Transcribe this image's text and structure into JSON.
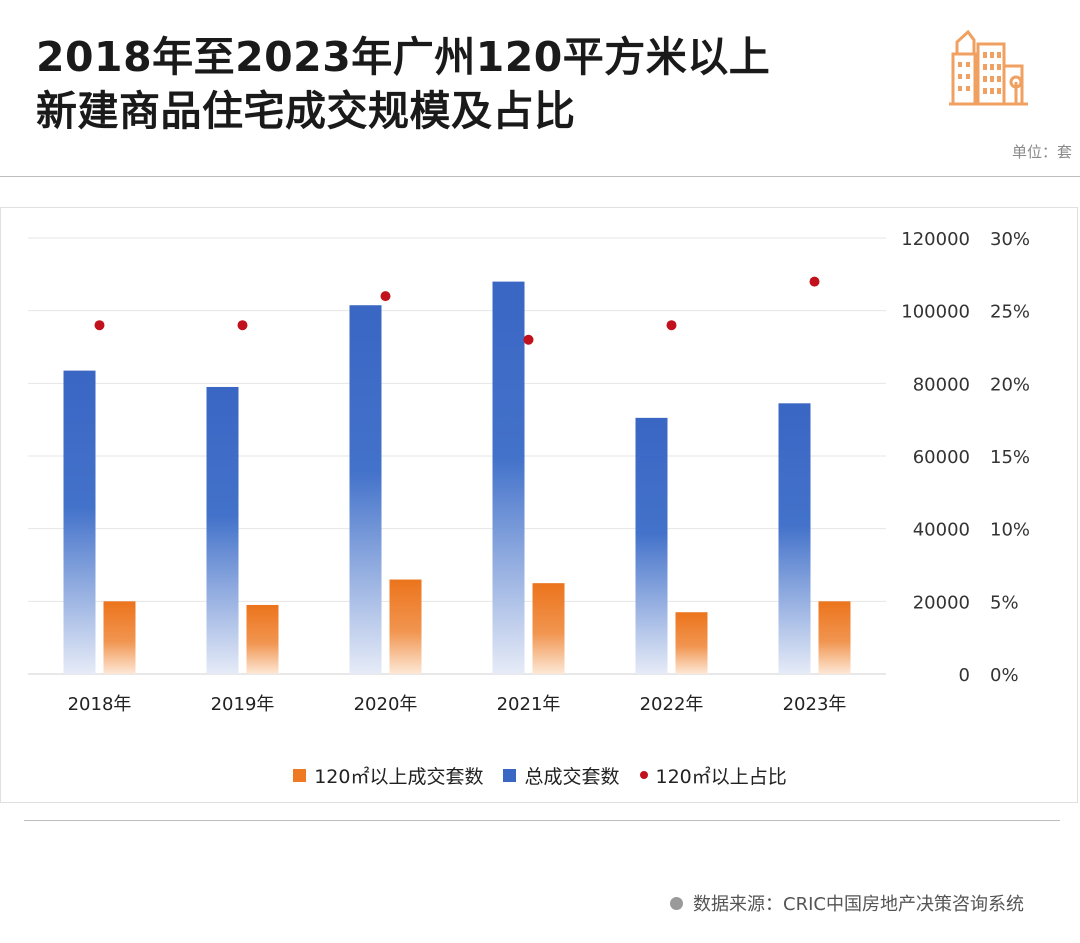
{
  "header": {
    "title_line1": "2018年至2023年广州120平方米以上",
    "title_line2": "新建商品住宅成交规模及占比",
    "unit_label": "单位：套",
    "logo_icon": "buildings-icon"
  },
  "footer": {
    "source_text": "数据来源：CRIC中国房地产决策咨询系统"
  },
  "colors": {
    "bar_total": "#3a66c4",
    "bar_large": "#ee7b24",
    "dot": "#c0111c",
    "logo": "#f0a060"
  },
  "chart_data": {
    "type": "bar",
    "categories": [
      "2018年",
      "2019年",
      "2020年",
      "2021年",
      "2022年",
      "2023年"
    ],
    "series": [
      {
        "name": "总成交套数",
        "type": "bar",
        "axis": "left",
        "values": [
          83500,
          79000,
          101500,
          108000,
          70500,
          74500
        ]
      },
      {
        "name": "120㎡以上成交套数",
        "type": "bar",
        "axis": "left",
        "values": [
          20000,
          19000,
          26000,
          25000,
          17000,
          20000
        ]
      },
      {
        "name": "120㎡以上占比",
        "type": "scatter",
        "axis": "right",
        "values": [
          24.0,
          24.0,
          26.0,
          23.0,
          24.0,
          27.0
        ]
      }
    ],
    "series_order": [
      1,
      0,
      2
    ],
    "y_left": {
      "min": 0,
      "max": 120000,
      "ticks": [
        0,
        20000,
        40000,
        60000,
        80000,
        100000,
        120000
      ],
      "tick_labels": [
        "0",
        "20000",
        "40000",
        "60000",
        "80000",
        "100000",
        "120000"
      ]
    },
    "y_right": {
      "min": 0,
      "max": 30,
      "ticks": [
        0,
        5,
        10,
        15,
        20,
        25,
        30
      ],
      "tick_labels": [
        "0%",
        "5%",
        "10%",
        "15%",
        "20%",
        "25%",
        "30%"
      ]
    },
    "grid": true,
    "legend_position": "bottom"
  }
}
